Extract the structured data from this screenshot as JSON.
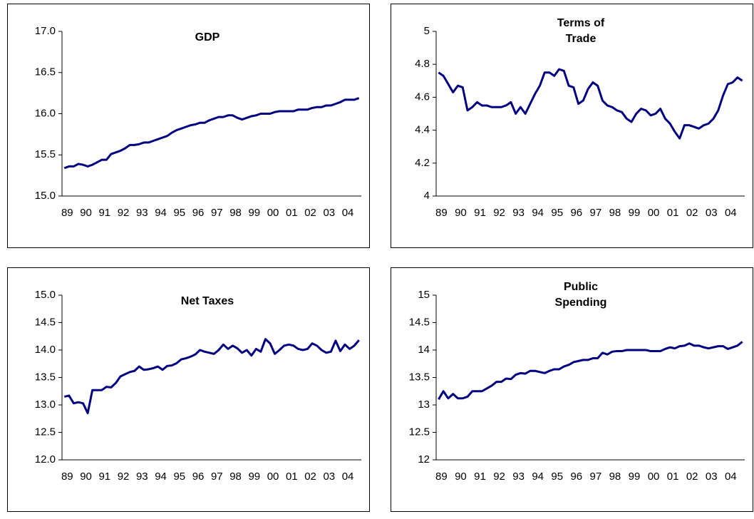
{
  "chart_data": [
    {
      "type": "line",
      "title": "GDP",
      "categories": [
        "89",
        null,
        null,
        null,
        "90",
        null,
        null,
        null,
        "91",
        null,
        null,
        null,
        "92",
        null,
        null,
        null,
        "93",
        null,
        null,
        null,
        "94",
        null,
        null,
        null,
        "95",
        null,
        null,
        null,
        "96",
        null,
        null,
        null,
        "97",
        null,
        null,
        null,
        "98",
        null,
        null,
        null,
        "99",
        null,
        null,
        null,
        "00",
        null,
        null,
        null,
        "01",
        null,
        null,
        null,
        "02",
        null,
        null,
        null,
        "03",
        null,
        null,
        null,
        "04",
        null,
        null,
        null
      ],
      "series": [
        {
          "color": "#000080",
          "values": [
            15.34,
            15.36,
            15.36,
            15.39,
            15.38,
            15.36,
            15.38,
            15.41,
            15.44,
            15.44,
            15.51,
            15.53,
            15.55,
            15.58,
            15.62,
            15.62,
            15.63,
            15.65,
            15.65,
            15.67,
            15.69,
            15.71,
            15.73,
            15.77,
            15.8,
            15.82,
            15.84,
            15.86,
            15.87,
            15.89,
            15.89,
            15.92,
            15.94,
            15.96,
            15.96,
            15.98,
            15.98,
            15.95,
            15.93,
            15.95,
            15.97,
            15.98,
            16.0,
            16.0,
            16.0,
            16.02,
            16.03,
            16.03,
            16.03,
            16.03,
            16.05,
            16.05,
            16.05,
            16.07,
            16.08,
            16.08,
            16.1,
            16.1,
            16.12,
            16.14,
            16.17,
            16.17,
            16.17,
            16.19
          ]
        }
      ],
      "ylim": [
        15,
        17
      ],
      "yticks": [
        {
          "value": 15,
          "label": "15.0"
        },
        {
          "value": 15.5,
          "label": "15.5"
        },
        {
          "value": 16,
          "label": "16.0"
        },
        {
          "value": 16.5,
          "label": "16.5"
        },
        {
          "value": 17,
          "label": "17.0"
        }
      ]
    },
    {
      "type": "line",
      "title": "Terms of Trade",
      "categories": [
        "89",
        null,
        null,
        null,
        "90",
        null,
        null,
        null,
        "91",
        null,
        null,
        null,
        "92",
        null,
        null,
        null,
        "93",
        null,
        null,
        null,
        "94",
        null,
        null,
        null,
        "95",
        null,
        null,
        null,
        "96",
        null,
        null,
        null,
        "97",
        null,
        null,
        null,
        "98",
        null,
        null,
        null,
        "99",
        null,
        null,
        null,
        "00",
        null,
        null,
        null,
        "01",
        null,
        null,
        null,
        "02",
        null,
        null,
        null,
        "03",
        null,
        null,
        null,
        "04",
        null,
        null,
        null
      ],
      "series": [
        {
          "color": "#000080",
          "values": [
            4.75,
            4.73,
            4.68,
            4.63,
            4.67,
            4.66,
            4.52,
            4.54,
            4.57,
            4.55,
            4.55,
            4.54,
            4.54,
            4.54,
            4.55,
            4.57,
            4.5,
            4.54,
            4.5,
            4.56,
            4.62,
            4.67,
            4.75,
            4.75,
            4.73,
            4.77,
            4.76,
            4.67,
            4.66,
            4.56,
            4.58,
            4.65,
            4.69,
            4.67,
            4.58,
            4.55,
            4.54,
            4.52,
            4.51,
            4.47,
            4.45,
            4.5,
            4.53,
            4.52,
            4.49,
            4.5,
            4.53,
            4.47,
            4.44,
            4.39,
            4.35,
            4.43,
            4.43,
            4.42,
            4.41,
            4.43,
            4.44,
            4.47,
            4.52,
            4.61,
            4.68,
            4.69,
            4.72,
            4.7
          ]
        }
      ],
      "ylim": [
        4,
        5
      ],
      "yticks": [
        4,
        4.2,
        4.4,
        4.6,
        4.8,
        5
      ]
    },
    {
      "type": "line",
      "title": "Net Taxes",
      "categories": [
        "89",
        null,
        null,
        null,
        "90",
        null,
        null,
        null,
        "91",
        null,
        null,
        null,
        "92",
        null,
        null,
        null,
        "93",
        null,
        null,
        null,
        "94",
        null,
        null,
        null,
        "95",
        null,
        null,
        null,
        "96",
        null,
        null,
        null,
        "97",
        null,
        null,
        null,
        "98",
        null,
        null,
        null,
        "99",
        null,
        null,
        null,
        "00",
        null,
        null,
        null,
        "01",
        null,
        null,
        null,
        "02",
        null,
        null,
        null,
        "03",
        null,
        null,
        null,
        "04",
        null,
        null,
        null
      ],
      "series": [
        {
          "color": "#000080",
          "values": [
            13.15,
            13.17,
            13.03,
            13.05,
            13.03,
            12.85,
            13.27,
            13.27,
            13.27,
            13.33,
            13.32,
            13.4,
            13.52,
            13.56,
            13.6,
            13.62,
            13.7,
            13.64,
            13.65,
            13.67,
            13.7,
            13.64,
            13.71,
            13.72,
            13.76,
            13.83,
            13.85,
            13.88,
            13.92,
            14.0,
            13.97,
            13.95,
            13.93,
            14.0,
            14.1,
            14.02,
            14.08,
            14.03,
            13.95,
            14.0,
            13.9,
            14.02,
            13.97,
            14.2,
            14.12,
            13.93,
            14.0,
            14.08,
            14.1,
            14.08,
            14.02,
            14.0,
            14.02,
            14.12,
            14.08,
            14.0,
            13.95,
            13.97,
            14.17,
            13.98,
            14.1,
            14.02,
            14.08,
            14.18
          ]
        }
      ],
      "ylim": [
        12,
        15
      ],
      "yticks": [
        {
          "value": 12,
          "label": "12.0"
        },
        {
          "value": 12.5,
          "label": "12.5"
        },
        {
          "value": 13,
          "label": "13.0"
        },
        {
          "value": 13.5,
          "label": "13.5"
        },
        {
          "value": 14,
          "label": "14.0"
        },
        {
          "value": 14.5,
          "label": "14.5"
        },
        {
          "value": 15,
          "label": "15.0"
        }
      ]
    },
    {
      "type": "line",
      "title": "Public Spending",
      "categories": [
        "89",
        null,
        null,
        null,
        "90",
        null,
        null,
        null,
        "91",
        null,
        null,
        null,
        "92",
        null,
        null,
        null,
        "93",
        null,
        null,
        null,
        "94",
        null,
        null,
        null,
        "95",
        null,
        null,
        null,
        "96",
        null,
        null,
        null,
        "97",
        null,
        null,
        null,
        "98",
        null,
        null,
        null,
        "99",
        null,
        null,
        null,
        "00",
        null,
        null,
        null,
        "01",
        null,
        null,
        null,
        "02",
        null,
        null,
        null,
        "03",
        null,
        null,
        null,
        "04",
        null,
        null,
        null
      ],
      "series": [
        {
          "color": "#000080",
          "values": [
            13.1,
            13.25,
            13.12,
            13.2,
            13.12,
            13.12,
            13.15,
            13.25,
            13.25,
            13.25,
            13.3,
            13.35,
            13.42,
            13.42,
            13.48,
            13.47,
            13.55,
            13.58,
            13.57,
            13.62,
            13.62,
            13.6,
            13.58,
            13.62,
            13.65,
            13.65,
            13.7,
            13.73,
            13.78,
            13.8,
            13.82,
            13.82,
            13.85,
            13.85,
            13.95,
            13.92,
            13.97,
            13.98,
            13.98,
            14.0,
            14.0,
            14.0,
            14.0,
            14.0,
            13.98,
            13.98,
            13.98,
            14.02,
            14.05,
            14.03,
            14.07,
            14.08,
            14.12,
            14.08,
            14.08,
            14.05,
            14.03,
            14.05,
            14.07,
            14.07,
            14.02,
            14.05,
            14.08,
            14.15
          ]
        }
      ],
      "ylim": [
        12,
        15
      ],
      "yticks": [
        12,
        12.5,
        13,
        13.5,
        14,
        14.5,
        15
      ]
    }
  ]
}
